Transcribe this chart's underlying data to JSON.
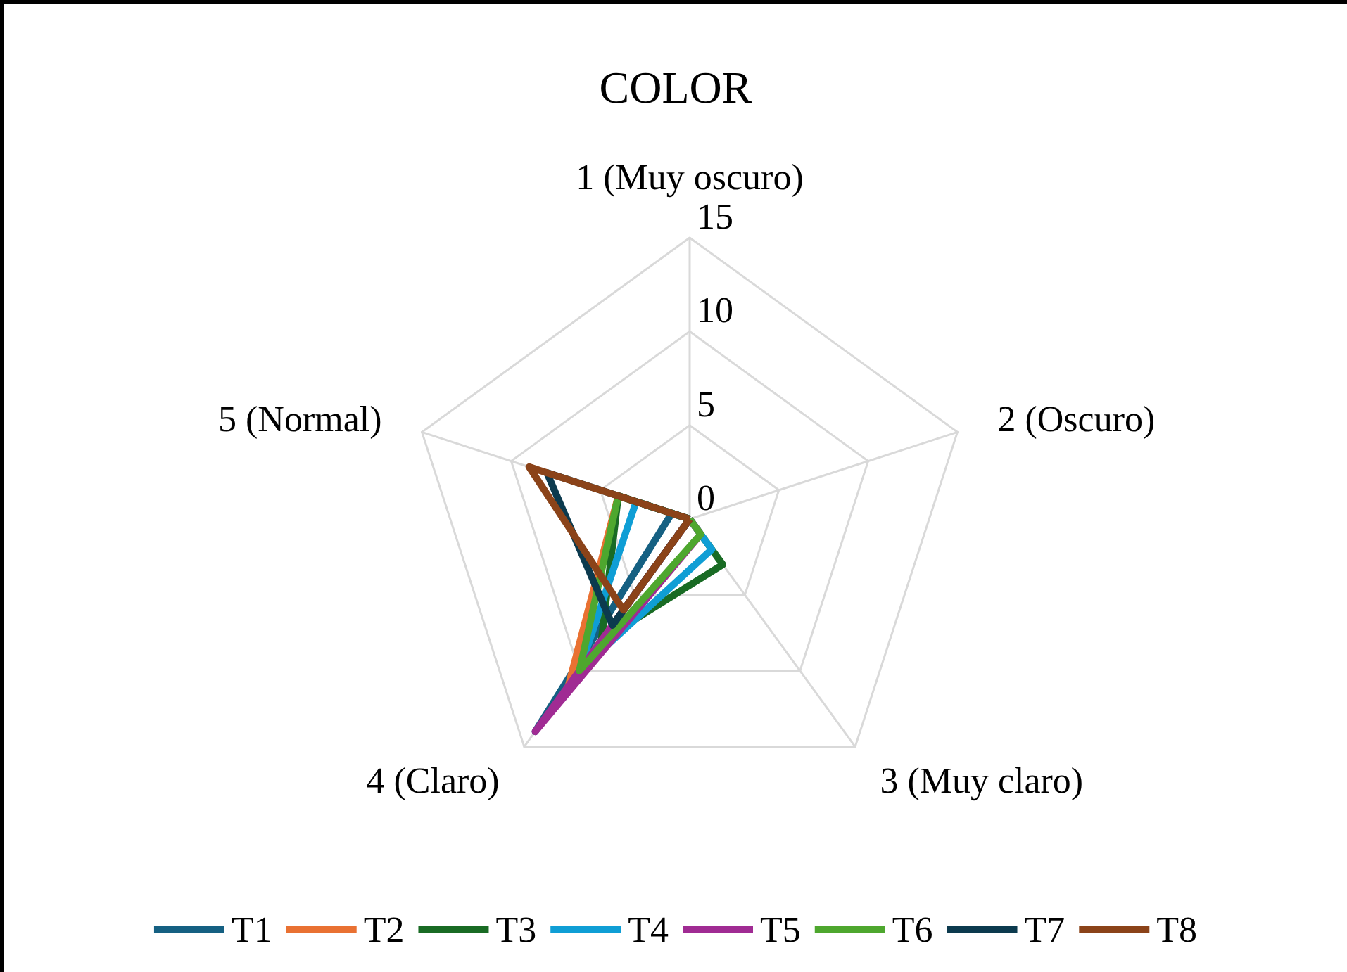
{
  "chart_data": {
    "type": "radar",
    "title": "COLOR",
    "categories": [
      "1 (Muy oscuro)",
      "2 (Oscuro)",
      "3 (Muy claro)",
      "4 (Claro)",
      "5 (Normal)"
    ],
    "ylim": [
      0,
      15
    ],
    "yticks": [
      0,
      5,
      10,
      15
    ],
    "grid": true,
    "legend": "bottom",
    "marker": "none",
    "line_style": "solid",
    "series": [
      {
        "name": "T1",
        "color": "#156082",
        "values": [
          0,
          0,
          0,
          14,
          1
        ]
      },
      {
        "name": "T2",
        "color": "#e97132",
        "values": [
          0,
          0,
          0,
          11,
          4
        ]
      },
      {
        "name": "T3",
        "color": "#196b24",
        "values": [
          0,
          0,
          3,
          8,
          4
        ]
      },
      {
        "name": "T4",
        "color": "#0f9ed5",
        "values": [
          0,
          0,
          2,
          10,
          3
        ]
      },
      {
        "name": "T5",
        "color": "#a02b93",
        "values": [
          0,
          0,
          1,
          14,
          0
        ]
      },
      {
        "name": "T6",
        "color": "#4ea72e",
        "values": [
          0,
          0,
          1,
          10,
          4
        ]
      },
      {
        "name": "T7",
        "color": "#0c3a4e",
        "values": [
          0,
          0,
          0,
          7,
          8
        ]
      },
      {
        "name": "T8",
        "color": "#8b4319",
        "values": [
          0,
          0,
          0,
          6,
          9
        ]
      }
    ]
  }
}
